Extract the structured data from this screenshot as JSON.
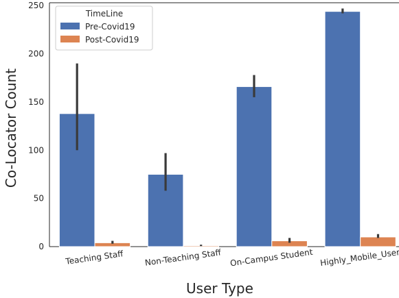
{
  "chart_data": {
    "type": "bar",
    "xlabel": "User Type",
    "ylabel": "Co-Locator Count",
    "categories": [
      "Teaching Staff",
      "Non-Teaching Staff",
      "On-Campus Student",
      "Highly_Mobile_User"
    ],
    "ylim": [
      0,
      253
    ],
    "yticks": [
      0,
      50,
      100,
      150,
      200,
      250
    ],
    "grid": false,
    "legend": {
      "title": "TimeLine",
      "position": "top-left"
    },
    "series": [
      {
        "name": "Pre-Covid19",
        "color": "#4c72b0",
        "values": [
          138,
          75,
          166,
          244
        ],
        "ci_low": [
          100,
          58,
          155,
          242
        ],
        "ci_high": [
          190,
          97,
          178,
          247
        ]
      },
      {
        "name": "Post-Covid19",
        "color": "#dd8452",
        "values": [
          4,
          1,
          6,
          10
        ],
        "ci_low": [
          3,
          0.5,
          4,
          9
        ],
        "ci_high": [
          6,
          2,
          9,
          13
        ]
      }
    ]
  }
}
